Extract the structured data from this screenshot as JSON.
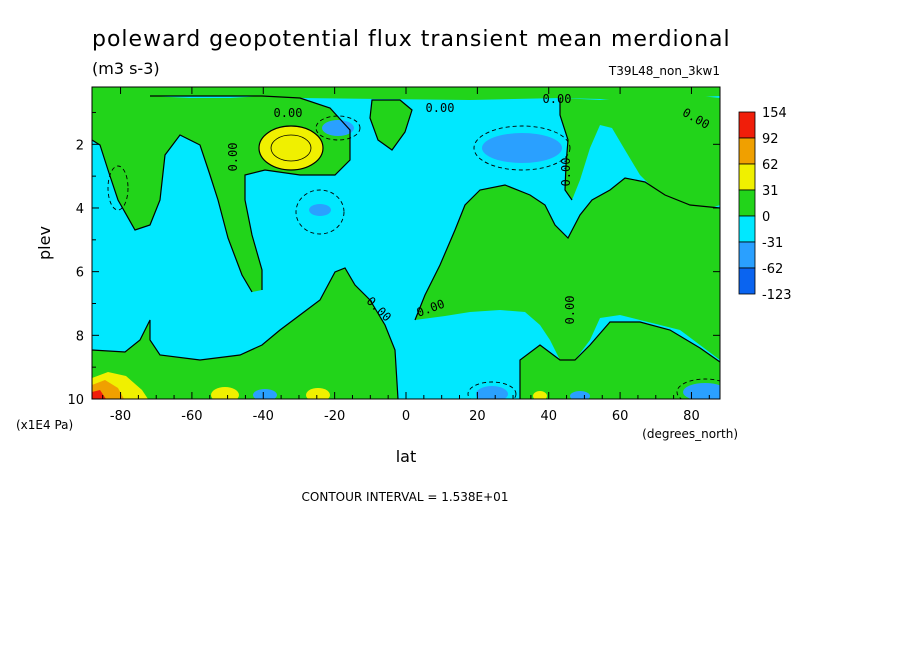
{
  "header": {
    "title": "poleward geopotential flux transient mean merdional",
    "units": "(m3 s-3)",
    "run_id": "T39L48_non_3kw1"
  },
  "footer": {
    "contour_interval": "CONTOUR INTERVAL = 1.538E+01"
  },
  "colors": {
    "bin_gt_154": "#f0281e",
    "bin_92_154": "#f01e0a",
    "bin_62_92": "#f0a000",
    "bin_31_62": "#f0f000",
    "bin_0_31": "#22d41a",
    "bin_m31_0": "#00e8ff",
    "bin_m62_m31": "#2aa0ff",
    "bin_lt_m62": "#0a64f0"
  },
  "chart_data": {
    "type": "heatmap",
    "title": "poleward geopotential flux transient mean merdional",
    "subtitle": "(m3 s-3)",
    "annotation": "T39L48_non_3kw1",
    "xlabel": "lat",
    "x_units_label": "(degrees_north)",
    "ylabel": "plev",
    "y_units_label": "(x1E4 Pa)",
    "xlim": [
      -88,
      88
    ],
    "ylim": [
      0.2,
      10
    ],
    "y_inverted": true,
    "x_ticks": [
      -80,
      -60,
      -40,
      -20,
      0,
      20,
      40,
      60,
      80
    ],
    "x_tick_labels": [
      "-80",
      "-60",
      "-40",
      "-20",
      "0",
      "20",
      "40",
      "60",
      "80"
    ],
    "y_ticks": [
      2,
      4,
      6,
      8,
      10
    ],
    "y_tick_labels": [
      "2",
      "4",
      "6",
      "8",
      "10"
    ],
    "contour_interval": 15.38,
    "contour_labels": [
      "0.00",
      "0.00",
      "0.00",
      "0.00",
      "0.00",
      "0.00",
      "0.00",
      "0.00",
      "0.00"
    ],
    "colorbar": {
      "labels": [
        "154",
        "92",
        "62",
        "31",
        "0",
        "-31",
        "-62",
        "-123"
      ]
    },
    "features": [
      {
        "lat": -32,
        "plev": 2.0,
        "value": 60,
        "label": "positive maximum"
      },
      {
        "lat": -86,
        "plev": 9.9,
        "value": 150,
        "label": "positive maximum"
      },
      {
        "lat": 37,
        "plev": 2.1,
        "value": -50,
        "label": "negative minimum"
      },
      {
        "lat": -20,
        "plev": 1.3,
        "value": -40,
        "label": "negative minimum"
      },
      {
        "lat": -25,
        "plev": 4.0,
        "value": -35,
        "label": "negative minimum"
      },
      {
        "lat": 85,
        "plev": 9.8,
        "value": -50,
        "label": "negative minimum"
      }
    ]
  }
}
